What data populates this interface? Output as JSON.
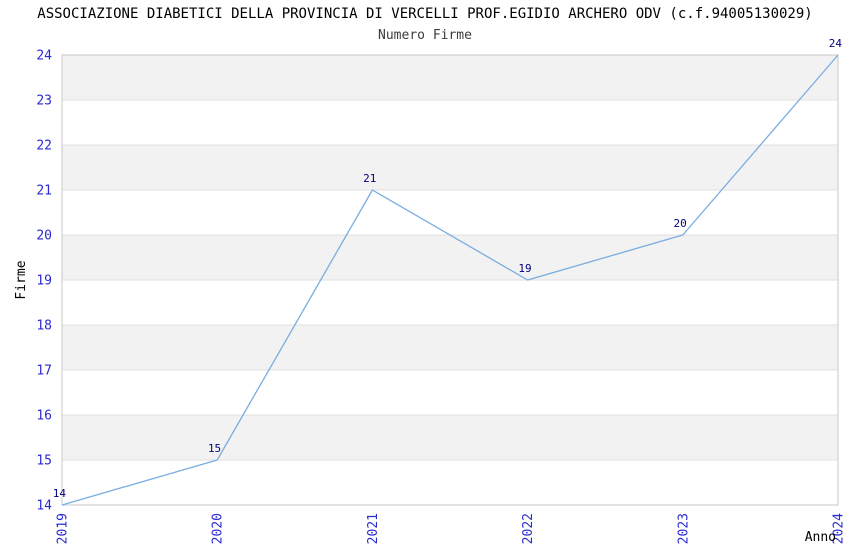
{
  "header": {
    "title": "ASSOCIAZIONE DIABETICI DELLA PROVINCIA DI VERCELLI PROF.EGIDIO ARCHERO ODV (c.f.94005130029)"
  },
  "chart_data": {
    "type": "line",
    "title": "Numero Firme",
    "x": [
      "2019",
      "2020",
      "2021",
      "2022",
      "2023",
      "2024"
    ],
    "values": [
      14,
      15,
      21,
      19,
      20,
      24
    ],
    "xlabel": "Anno",
    "ylabel": "Firme",
    "ylim": [
      14,
      24
    ],
    "y_tick_step": 1,
    "grid": "horizontal",
    "banded_background": true,
    "legend": "none",
    "colors": {
      "line": "#79ADE0",
      "tick_label": "#2A2AD0",
      "data_label": "#00007E",
      "band": "#F2F2F2",
      "grid_line": "#E0E0E0",
      "border": "#C8C8C8",
      "title": "#000000",
      "subtitle": "#3C3C3C",
      "axis_label": "#000000"
    }
  }
}
